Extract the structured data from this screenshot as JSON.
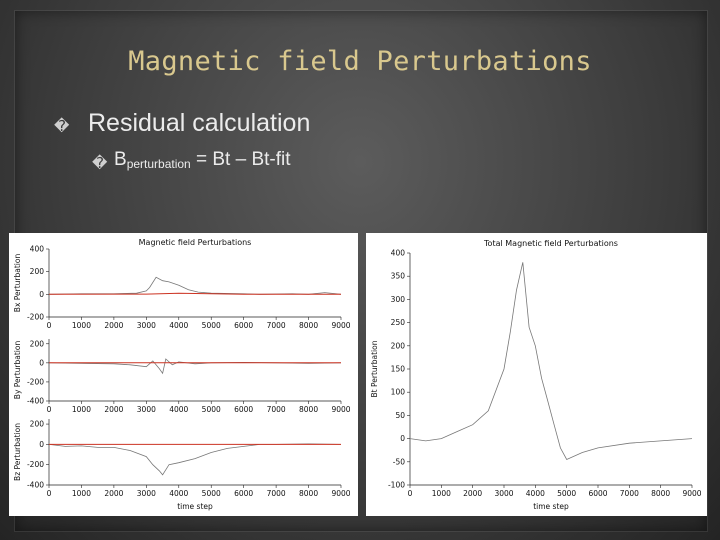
{
  "slide": {
    "title": "Magnetic field Perturbations",
    "bullet_glyph": "�",
    "bullet1": "Residual calculation",
    "bullet2_main": "B",
    "bullet2_sub": "perturbation",
    "bullet2_rest": " = Bt – Bt-fit"
  },
  "colors": {
    "title": "#d9c88e",
    "data_line": "#777777",
    "fit_line": "#cc3322"
  },
  "chart_data": [
    {
      "type": "line",
      "title": "Magnetic field Perturbations",
      "xlabel": "",
      "ylabel": "Bx Perturbation",
      "xticks": [
        "0",
        "1000",
        "2000",
        "3000",
        "4000",
        "5000",
        "6000",
        "7000",
        "8000",
        "9000"
      ],
      "yticks": [
        "-200",
        "0",
        "200",
        "400"
      ],
      "xlim": [
        0,
        9000
      ],
      "ylim": [
        -200,
        400
      ],
      "series": [
        {
          "role": "data",
          "x": [
            0,
            1000,
            2000,
            2700,
            3000,
            3100,
            3300,
            3500,
            3700,
            4000,
            4300,
            4600,
            5000,
            6000,
            6500,
            7500,
            8000,
            8500,
            9000
          ],
          "y": [
            0,
            5,
            5,
            10,
            30,
            60,
            150,
            120,
            110,
            80,
            40,
            20,
            10,
            5,
            0,
            5,
            0,
            15,
            0
          ]
        },
        {
          "role": "fit",
          "x": [
            0,
            3000,
            4000,
            5000,
            6000,
            9000
          ],
          "y": [
            0,
            2,
            10,
            5,
            0,
            0
          ]
        }
      ]
    },
    {
      "type": "line",
      "title": "",
      "xlabel": "",
      "ylabel": "By Perturbation",
      "xticks": [
        "0",
        "1000",
        "2000",
        "3000",
        "4000",
        "5000",
        "6000",
        "7000",
        "8000",
        "9000"
      ],
      "yticks": [
        "-400",
        "-200",
        "0",
        "200"
      ],
      "xlim": [
        0,
        9000
      ],
      "ylim": [
        -400,
        250
      ],
      "series": [
        {
          "role": "data",
          "x": [
            0,
            1000,
            2000,
            2500,
            3000,
            3200,
            3400,
            3500,
            3600,
            3800,
            4000,
            4500,
            5000,
            6000,
            7000,
            8000,
            9000
          ],
          "y": [
            0,
            -5,
            -10,
            -20,
            -40,
            20,
            -60,
            -110,
            40,
            -20,
            10,
            -10,
            0,
            5,
            0,
            -5,
            0
          ]
        },
        {
          "role": "fit",
          "x": [
            0,
            9000
          ],
          "y": [
            0,
            0
          ]
        }
      ]
    },
    {
      "type": "line",
      "title": "",
      "xlabel": "time step",
      "ylabel": "Bz Perturbation",
      "xticks": [
        "0",
        "1000",
        "2000",
        "3000",
        "4000",
        "5000",
        "6000",
        "7000",
        "8000",
        "9000"
      ],
      "yticks": [
        "-400",
        "-200",
        "0",
        "200"
      ],
      "xlim": [
        0,
        9000
      ],
      "ylim": [
        -400,
        250
      ],
      "series": [
        {
          "role": "data",
          "x": [
            0,
            500,
            1000,
            1500,
            2000,
            2500,
            3000,
            3200,
            3400,
            3500,
            3700,
            4000,
            4500,
            5000,
            5500,
            6000,
            6500,
            7000,
            8000,
            9000
          ],
          "y": [
            0,
            -20,
            -15,
            -30,
            -30,
            -60,
            -120,
            -200,
            -260,
            -300,
            -200,
            -180,
            -140,
            -80,
            -40,
            -20,
            0,
            0,
            5,
            0
          ]
        },
        {
          "role": "fit",
          "x": [
            0,
            9000
          ],
          "y": [
            0,
            0
          ]
        }
      ]
    },
    {
      "type": "line",
      "title": "Total Magnetic field Perturbations",
      "xlabel": "time step",
      "ylabel": "Bt Perturbation",
      "xticks": [
        "0",
        "1000",
        "2000",
        "3000",
        "4000",
        "5000",
        "6000",
        "7000",
        "8000",
        "9000"
      ],
      "yticks": [
        "-100",
        "-50",
        "0",
        "50",
        "100",
        "150",
        "200",
        "250",
        "300",
        "350",
        "400"
      ],
      "xlim": [
        0,
        9000
      ],
      "ylim": [
        -100,
        400
      ],
      "series": [
        {
          "role": "data",
          "x": [
            0,
            500,
            1000,
            1500,
            2000,
            2500,
            3000,
            3200,
            3400,
            3600,
            3800,
            4000,
            4200,
            4400,
            4600,
            4800,
            5000,
            5500,
            6000,
            7000,
            8000,
            9000
          ],
          "y": [
            0,
            -5,
            0,
            15,
            30,
            60,
            150,
            230,
            320,
            380,
            240,
            200,
            130,
            80,
            30,
            -20,
            -45,
            -30,
            -20,
            -10,
            -5,
            0
          ]
        }
      ]
    }
  ]
}
